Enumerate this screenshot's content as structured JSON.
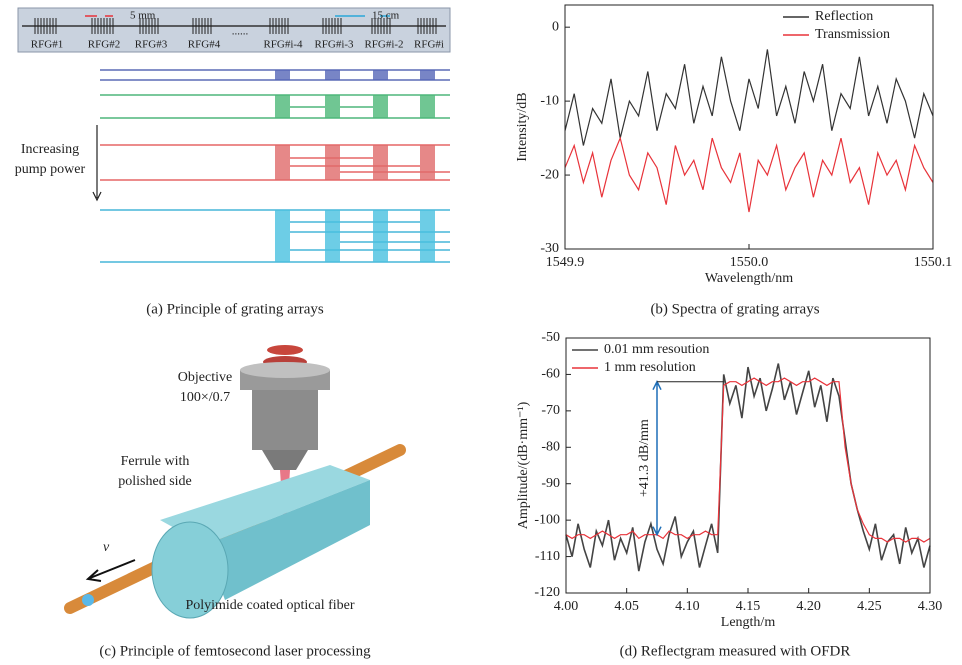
{
  "captions": [
    "(a) Principle of grating arrays",
    "(b) Spectra of grating arrays",
    "(c) Principle of femtosecond laser processing",
    "(d) Reflectgram measured with OFDR"
  ],
  "diagram_a": {
    "scale_labels": [
      "5 mm",
      "15 cm"
    ],
    "grating_labels": [
      "RFG#1",
      "RFG#2",
      "RFG#3",
      "RFG#4",
      "......",
      "RFG#i-4",
      "RFG#i-3",
      "RFG#i-2",
      "RFG#i"
    ],
    "pump_label": [
      "Increasing",
      "pump power"
    ]
  },
  "diagram_c": {
    "objective": [
      "Objective",
      "100×/0.7"
    ],
    "ferrule": [
      "Ferrule with",
      "polished side"
    ],
    "velocity": "v",
    "fiber": "Polyimide coated optical fiber"
  },
  "chart_data": [
    {
      "type": "line",
      "xlabel": "Wavelength/nm",
      "ylabel": "Intensity/dB",
      "x": [
        1549.9,
        1549.905,
        1549.91,
        1549.915,
        1549.92,
        1549.925,
        1549.93,
        1549.935,
        1549.94,
        1549.945,
        1549.95,
        1549.955,
        1549.96,
        1549.965,
        1549.97,
        1549.975,
        1549.98,
        1549.985,
        1549.99,
        1549.995,
        1550,
        1550.005,
        1550.01,
        1550.015,
        1550.02,
        1550.025,
        1550.03,
        1550.035,
        1550.04,
        1550.045,
        1550.05,
        1550.055,
        1550.06,
        1550.065,
        1550.07,
        1550.075,
        1550.08,
        1550.085,
        1550.09,
        1550.095,
        1550.1
      ],
      "series": [
        {
          "name": "Reflection",
          "color": "#333333",
          "values": [
            -14,
            -9,
            -16,
            -11,
            -13,
            -7,
            -15,
            -10,
            -12,
            -6,
            -14,
            -9,
            -11,
            -5,
            -13,
            -8,
            -12,
            -4,
            -10,
            -14,
            -7,
            -11,
            -3,
            -12,
            -8,
            -13,
            -6,
            -10,
            -5,
            -14,
            -9,
            -11,
            -4,
            -12,
            -8,
            -13,
            -7,
            -10,
            -15,
            -9,
            -12
          ]
        },
        {
          "name": "Transmission",
          "color": "#e8333a",
          "values": [
            -19,
            -16,
            -21,
            -17,
            -23,
            -18,
            -15,
            -20,
            -22,
            -17,
            -19,
            -24,
            -16,
            -20,
            -18,
            -22,
            -15,
            -19,
            -21,
            -17,
            -25,
            -18,
            -20,
            -16,
            -22,
            -19,
            -17,
            -23,
            -18,
            -20,
            -15,
            -21,
            -19,
            -24,
            -17,
            -20,
            -18,
            -22,
            -16,
            -19,
            -21
          ]
        }
      ],
      "xlim": [
        1549.9,
        1550.1
      ],
      "xticks": [
        1549.9,
        {
          "value": 1550,
          "label": "1550.0"
        },
        1550.1
      ],
      "ylim": [
        -30,
        3
      ],
      "yticks": [
        0,
        -10,
        -20,
        -30
      ],
      "legend": "upper right"
    },
    {
      "type": "line",
      "xlabel": "Length/m",
      "ylabel": "Amplitude/(dB·mm⁻¹)",
      "annotation": "+41.3 dB/mm",
      "x": [
        4,
        4.005,
        4.01,
        4.015,
        4.02,
        4.025,
        4.03,
        4.035,
        4.04,
        4.045,
        4.05,
        4.055,
        4.06,
        4.065,
        4.07,
        4.075,
        4.08,
        4.085,
        4.09,
        4.095,
        4.1,
        4.105,
        4.11,
        4.115,
        4.12,
        4.125,
        4.13,
        4.135,
        4.14,
        4.145,
        4.15,
        4.155,
        4.16,
        4.165,
        4.17,
        4.175,
        4.18,
        4.185,
        4.19,
        4.195,
        4.2,
        4.205,
        4.21,
        4.215,
        4.22,
        4.225,
        4.23,
        4.235,
        4.24,
        4.245,
        4.25,
        4.255,
        4.26,
        4.265,
        4.27,
        4.275,
        4.28,
        4.285,
        4.29,
        4.295,
        4.3
      ],
      "series": [
        {
          "name": "0.01 mm resoution",
          "color": "#444444",
          "values": [
            -104,
            -110,
            -101,
            -108,
            -113,
            -103,
            -107,
            -100,
            -111,
            -105,
            -109,
            -102,
            -114,
            -106,
            -101,
            -108,
            -112,
            -104,
            -99,
            -110,
            -106,
            -103,
            -113,
            -107,
            -101,
            -109,
            -60,
            -68,
            -63,
            -72,
            -58,
            -66,
            -61,
            -70,
            -64,
            -57,
            -67,
            -62,
            -71,
            -65,
            -59,
            -69,
            -63,
            -73,
            -61,
            -66,
            -78,
            -90,
            -97,
            -103,
            -108,
            -101,
            -111,
            -106,
            -104,
            -112,
            -102,
            -109,
            -105,
            -113,
            -107
          ]
        },
        {
          "name": "1 mm resolution",
          "color": "#e8333a",
          "values": [
            -104,
            -105,
            -104,
            -104,
            -105,
            -104,
            -103,
            -104,
            -105,
            -104,
            -104,
            -103,
            -105,
            -104,
            -104,
            -104,
            -105,
            -103,
            -104,
            -104,
            -105,
            -104,
            -104,
            -103,
            -104,
            -104,
            -63,
            -62,
            -62,
            -63,
            -62,
            -61,
            -62,
            -63,
            -62,
            -62,
            -61,
            -62,
            -63,
            -62,
            -62,
            -61,
            -62,
            -63,
            -62,
            -62,
            -80,
            -90,
            -97,
            -101,
            -104,
            -105,
            -105,
            -106,
            -105,
            -105,
            -106,
            -105,
            -105,
            -106,
            -105
          ]
        }
      ],
      "xlim": [
        4,
        4.3
      ],
      "xticks": [
        {
          "value": 4,
          "label": "4.00"
        },
        4.05,
        {
          "value": 4.1,
          "label": "4.10"
        },
        4.15,
        {
          "value": 4.2,
          "label": "4.20"
        },
        4.25,
        {
          "value": 4.3,
          "label": "4.30"
        }
      ],
      "ylim": [
        -120,
        -50
      ],
      "yticks": [
        -50,
        -60,
        -70,
        -80,
        -90,
        -100,
        -110,
        -120
      ],
      "legend": "upper left"
    }
  ]
}
